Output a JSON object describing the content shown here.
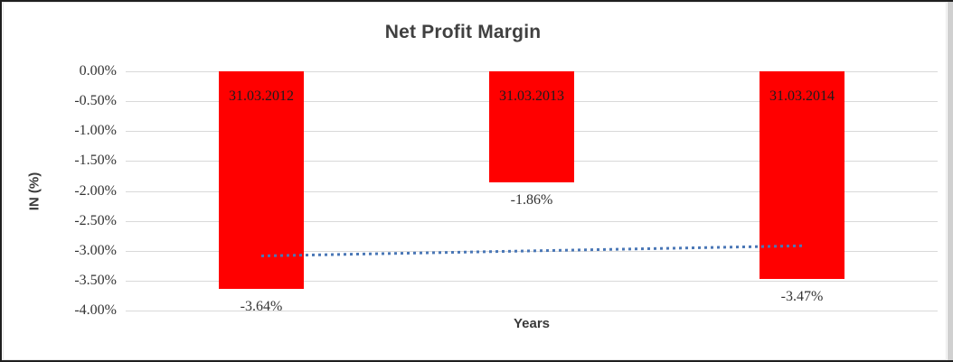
{
  "window": {
    "border_color": "#1f1f1f",
    "right_edge_color": "#d0d0d0"
  },
  "chart_data": {
    "type": "bar",
    "title": "Net Profit Margin",
    "xlabel": "Years",
    "ylabel": "IN (%)",
    "categories": [
      "31.03.2012",
      "31.03.2013",
      "31.03.2014"
    ],
    "values": [
      -3.64,
      -1.86,
      -3.47
    ],
    "value_labels": [
      "-3.64%",
      "-1.86%",
      "-3.47%"
    ],
    "bar_color": "#ff0000",
    "ylim": [
      -4,
      0
    ],
    "y_ticks": [
      {
        "label": "0.00%",
        "value": 0
      },
      {
        "label": "-0.50%",
        "value": -0.5
      },
      {
        "label": "-1.00%",
        "value": -1
      },
      {
        "label": "-1.50%",
        "value": -1.5
      },
      {
        "label": "-2.00%",
        "value": -2
      },
      {
        "label": "-2.50%",
        "value": -2.5
      },
      {
        "label": "-3.00%",
        "value": -3
      },
      {
        "label": "-3.50%",
        "value": -3.5
      },
      {
        "label": "-4.00%",
        "value": -4
      }
    ],
    "grid": true,
    "legend": "none",
    "trendline": {
      "type": "linear",
      "style": "dotted",
      "color": "#4a77b6",
      "start_value": -3.08,
      "end_value": -2.91
    }
  }
}
